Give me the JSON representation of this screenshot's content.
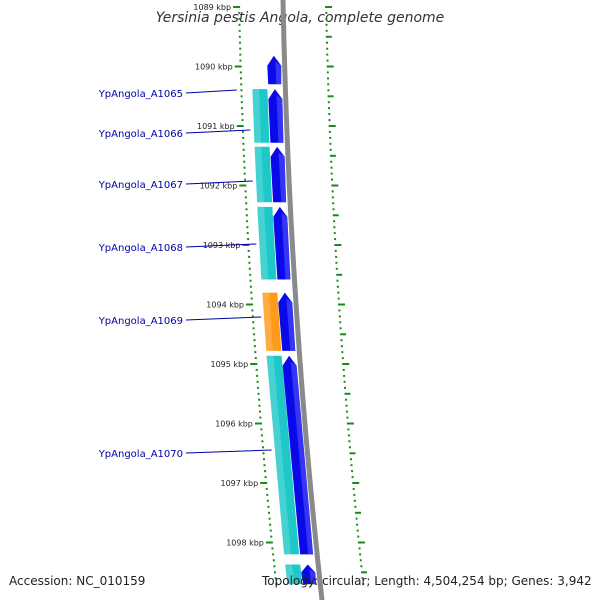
{
  "title": "Yersinia pestis Angola, complete genome",
  "accession": "Accession: NC_010159",
  "topology": "Topology: circular; Length: 4,504,254 bp; Genes: 3,942",
  "colors": {
    "backbone": "#8a8a8a",
    "tick": "#1a8a1a",
    "cds_forward": "#0a0ae8",
    "cds_reverse": "#1ec8c8",
    "cds_highlight": "#ff9a1a",
    "gene_label": "#0000aa",
    "gene_leader": "#0000aa"
  },
  "scale": {
    "unit": "kbp",
    "ticks": [
      {
        "kbp": 1089,
        "label": "1089 kbp"
      },
      {
        "kbp": 1090,
        "label": "1090 kbp"
      },
      {
        "kbp": 1091,
        "label": "1091 kbp"
      },
      {
        "kbp": 1092,
        "label": "1092 kbp"
      },
      {
        "kbp": 1093,
        "label": "1093 kbp"
      },
      {
        "kbp": 1094,
        "label": "1094 kbp"
      },
      {
        "kbp": 1095,
        "label": "1095 kbp"
      },
      {
        "kbp": 1096,
        "label": "1096 kbp"
      },
      {
        "kbp": 1097,
        "label": "1097 kbp"
      },
      {
        "kbp": 1098,
        "label": "1098 kbp"
      }
    ]
  },
  "genes": [
    {
      "name": "YpAngola_A1065",
      "start_kbp": 1089.82,
      "end_kbp": 1090.3,
      "track": "forward",
      "highlight": false
    },
    {
      "name": "YpAngola_A1066",
      "start_kbp": 1090.38,
      "end_kbp": 1091.28,
      "track": "forward",
      "highlight": false
    },
    {
      "name": "YpAngola_A1067",
      "start_kbp": 1091.35,
      "end_kbp": 1092.28,
      "track": "forward",
      "highlight": false
    },
    {
      "name": "YpAngola_A1068",
      "start_kbp": 1092.36,
      "end_kbp": 1093.58,
      "track": "forward",
      "highlight": false
    },
    {
      "name": "YpAngola_A1069",
      "start_kbp": 1093.8,
      "end_kbp": 1094.78,
      "track": "forward",
      "highlight": false
    },
    {
      "name": "YpAngola_A1070",
      "start_kbp": 1094.86,
      "end_kbp": 1098.2,
      "track": "forward",
      "highlight": false
    },
    {
      "name": "",
      "start_kbp": 1098.37,
      "end_kbp": 1098.7,
      "track": "forward",
      "highlight": false
    }
  ],
  "reverse_features": [
    {
      "start_kbp": 1090.38,
      "end_kbp": 1091.28,
      "highlight": false
    },
    {
      "start_kbp": 1091.35,
      "end_kbp": 1092.28,
      "highlight": false
    },
    {
      "start_kbp": 1092.36,
      "end_kbp": 1093.58,
      "highlight": false
    },
    {
      "start_kbp": 1093.8,
      "end_kbp": 1094.78,
      "highlight": true
    },
    {
      "start_kbp": 1094.86,
      "end_kbp": 1098.2,
      "highlight": false
    },
    {
      "start_kbp": 1098.37,
      "end_kbp": 1098.7,
      "highlight": false
    }
  ]
}
